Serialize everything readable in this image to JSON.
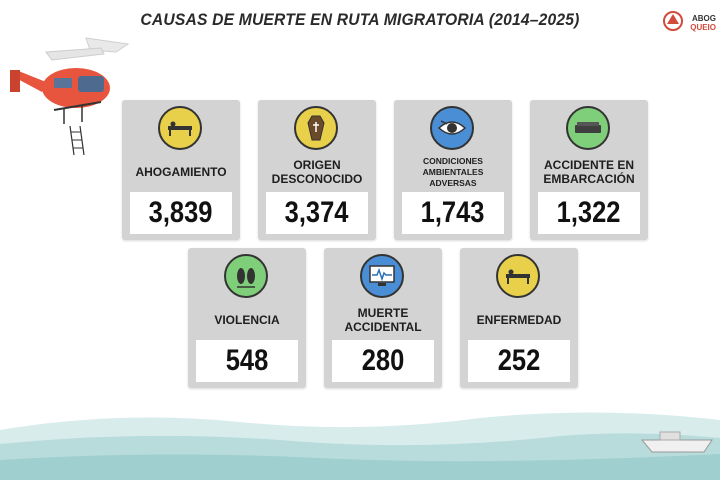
{
  "title": "CAUSAS DE MUERTE EN RUTA MIGRATORIA (2014–2025)",
  "logo": {
    "line1": "ABOG",
    "line2": "QUEIO"
  },
  "colors": {
    "yellow": "#e8d04a",
    "green": "#7fcf7a",
    "blue": "#4a8fd6",
    "card": "#d3d3d3"
  },
  "cards": [
    {
      "label": "AHOGAMIENTO",
      "value": "3,839",
      "icon": "stretcher-icon",
      "color": "yellow"
    },
    {
      "label": "ORIGEN DESCONOCIDO",
      "value": "3,374",
      "icon": "coffin-icon",
      "color": "yellow"
    },
    {
      "label": "CONDICIONES AMBIENTALES ADVERSAS",
      "value": "1,743",
      "icon": "eye-icon",
      "color": "blue"
    },
    {
      "label": "ACCIDENTE EN EMBARCACIÓN",
      "value": "1,322",
      "icon": "bed-icon",
      "color": "green"
    },
    {
      "label": "VIOLENCIA",
      "value": "548",
      "icon": "footprints-icon",
      "color": "green"
    },
    {
      "label": "MUERTE ACCIDENTAL",
      "value": "280",
      "icon": "heart-monitor-icon",
      "color": "blue"
    },
    {
      "label": "ENFERMEDAD",
      "value": "252",
      "icon": "stretcher-icon",
      "color": "yellow"
    }
  ]
}
